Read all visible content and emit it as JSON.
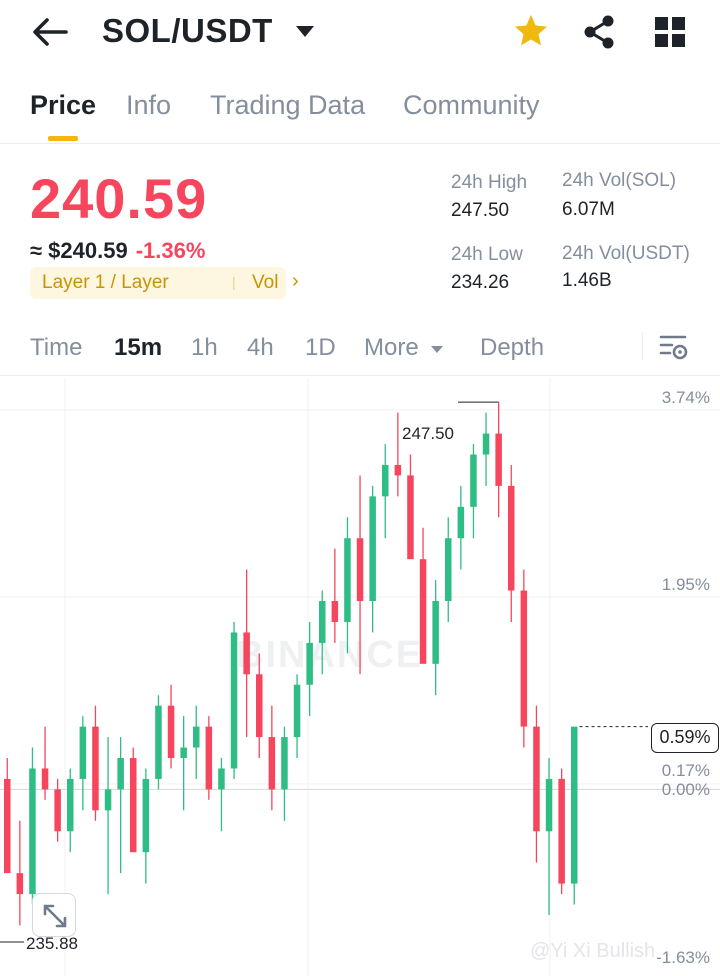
{
  "header": {
    "pair": "SOL/USDT",
    "icons": [
      "back-arrow-icon",
      "caret-down-icon",
      "star-icon",
      "share-icon",
      "grid-icon"
    ],
    "star_color": "#f0b90b"
  },
  "tabs": [
    {
      "label": "Price",
      "active": true
    },
    {
      "label": "Info",
      "active": false
    },
    {
      "label": "Trading Data",
      "active": false
    },
    {
      "label": "Community",
      "active": false
    }
  ],
  "price": {
    "last": "240.59",
    "approx": "≈ $240.59",
    "change": "-1.36%",
    "tag": "Layer 1 / Layer",
    "tag_vol": "Vol",
    "color_down": "#f6465d",
    "color_up": "#2ebd85"
  },
  "stats": {
    "high_label": "24h High",
    "high_value": "247.50",
    "low_label": "24h Low",
    "low_value": "234.26",
    "vol_base_label": "24h Vol(SOL)",
    "vol_base_value": "6.07M",
    "vol_quote_label": "24h Vol(USDT)",
    "vol_quote_value": "1.46B"
  },
  "intervals": [
    {
      "label": "Time",
      "active": false
    },
    {
      "label": "15m",
      "active": true
    },
    {
      "label": "1h",
      "active": false
    },
    {
      "label": "4h",
      "active": false
    },
    {
      "label": "1D",
      "active": false
    },
    {
      "label": "More",
      "active": false
    },
    {
      "label": "Depth",
      "active": false
    }
  ],
  "chart": {
    "pct_labels": [
      "3.74%",
      "1.95%",
      "0.17%",
      "0.00%",
      "-1.63%"
    ],
    "last_pct": "0.59%",
    "high_marker": "247.50",
    "low_marker": "235.88",
    "watermark": "BINANCE",
    "credit": "@Yi Xi Bullish"
  },
  "chart_data": {
    "type": "candlestick",
    "interval": "15m",
    "ylim_pct": [
      -1.63,
      3.74
    ],
    "grid": true,
    "high": 247.5,
    "low": 235.88,
    "candles_pct": [
      [
        0.1,
        0.3,
        -0.6,
        -0.8
      ],
      [
        -0.8,
        -0.3,
        -1.3,
        -1.0
      ],
      [
        -1.0,
        0.4,
        -1.1,
        0.2
      ],
      [
        0.2,
        0.6,
        -0.1,
        0.0
      ],
      [
        0.0,
        0.1,
        -0.5,
        -0.4
      ],
      [
        -0.4,
        0.2,
        -0.6,
        0.1
      ],
      [
        0.1,
        0.7,
        -0.2,
        0.6
      ],
      [
        0.6,
        0.8,
        -0.3,
        -0.2
      ],
      [
        -0.2,
        0.5,
        -1.0,
        0.0
      ],
      [
        0.0,
        0.5,
        -0.8,
        0.3
      ],
      [
        0.3,
        0.4,
        -0.5,
        -0.6
      ],
      [
        -0.6,
        0.2,
        -0.9,
        0.1
      ],
      [
        0.1,
        0.9,
        0.0,
        0.8
      ],
      [
        0.8,
        1.0,
        0.2,
        0.3
      ],
      [
        0.3,
        0.7,
        -0.2,
        0.4
      ],
      [
        0.4,
        0.8,
        0.1,
        0.6
      ],
      [
        0.6,
        0.7,
        -0.1,
        0.0
      ],
      [
        0.0,
        0.3,
        -0.4,
        0.2
      ],
      [
        0.2,
        1.6,
        0.1,
        1.5
      ],
      [
        1.5,
        2.1,
        0.5,
        1.1
      ],
      [
        1.1,
        1.3,
        0.3,
        0.5
      ],
      [
        0.5,
        0.8,
        -0.2,
        0.0
      ],
      [
        0.0,
        0.6,
        -0.3,
        0.5
      ],
      [
        0.5,
        1.1,
        0.3,
        1.0
      ],
      [
        1.0,
        1.6,
        0.7,
        1.4
      ],
      [
        1.4,
        1.9,
        1.1,
        1.8
      ],
      [
        1.8,
        2.3,
        1.4,
        1.6
      ],
      [
        1.6,
        2.6,
        1.3,
        2.4
      ],
      [
        2.4,
        3.0,
        1.1,
        1.8
      ],
      [
        1.8,
        2.9,
        1.5,
        2.8
      ],
      [
        2.8,
        3.3,
        2.4,
        3.1
      ],
      [
        3.1,
        3.6,
        2.8,
        3.0
      ],
      [
        3.0,
        3.2,
        2.5,
        2.2
      ],
      [
        2.2,
        2.5,
        1.5,
        1.2
      ],
      [
        1.2,
        2.0,
        0.9,
        1.8
      ],
      [
        1.8,
        2.6,
        1.6,
        2.4
      ],
      [
        2.4,
        2.9,
        2.1,
        2.7
      ],
      [
        2.7,
        3.3,
        2.4,
        3.2
      ],
      [
        3.2,
        3.6,
        2.9,
        3.4
      ],
      [
        3.4,
        3.7,
        2.6,
        2.9
      ],
      [
        2.9,
        3.1,
        1.6,
        1.9
      ],
      [
        1.9,
        2.1,
        0.4,
        0.6
      ],
      [
        0.6,
        0.8,
        -0.7,
        -0.4
      ],
      [
        -0.4,
        0.3,
        -1.2,
        0.1
      ],
      [
        0.1,
        0.2,
        -1.0,
        -0.9
      ],
      [
        -0.9,
        0.5,
        -1.1,
        0.6
      ]
    ]
  }
}
